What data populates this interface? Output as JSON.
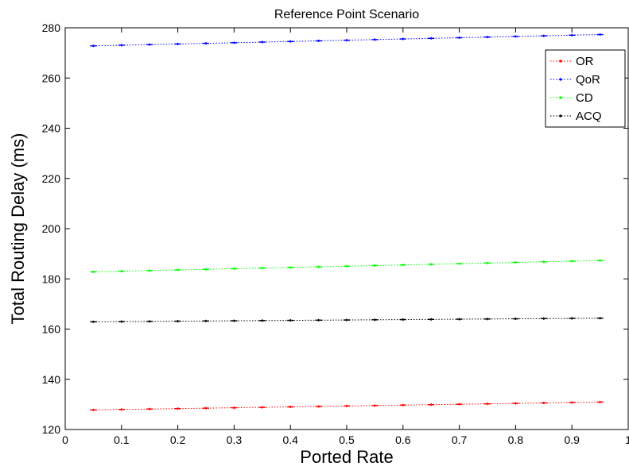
{
  "chart_data": {
    "type": "line",
    "title": "Reference Point Scenario",
    "xlabel": "Ported Rate",
    "ylabel": "Total Routing Delay (ms)",
    "xlim": [
      0,
      1
    ],
    "ylim": [
      120,
      280
    ],
    "xticks": [
      0,
      0.1,
      0.2,
      0.3,
      0.4,
      0.5,
      0.6,
      0.7,
      0.8,
      0.9,
      1
    ],
    "xtick_labels": [
      "0",
      "0.1",
      "0.2",
      "0.3",
      "0.4",
      "0.5",
      "0.6",
      "0.7",
      "0.8",
      "0.9",
      "1"
    ],
    "yticks": [
      120,
      140,
      160,
      180,
      200,
      220,
      240,
      260,
      280
    ],
    "ytick_labels": [
      "120",
      "140",
      "160",
      "180",
      "200",
      "220",
      "240",
      "260",
      "280"
    ],
    "grid": false,
    "legend_position": "top-right",
    "x": [
      0.05,
      0.1,
      0.15,
      0.2,
      0.25,
      0.3,
      0.35,
      0.4,
      0.45,
      0.5,
      0.55,
      0.6,
      0.65,
      0.7,
      0.75,
      0.8,
      0.85,
      0.9,
      0.95
    ],
    "series": [
      {
        "name": "OR",
        "color": "#ff0000",
        "values": [
          127.8,
          127.98,
          128.15,
          128.32,
          128.5,
          128.67,
          128.84,
          129.02,
          129.19,
          129.37,
          129.54,
          129.71,
          129.89,
          130.06,
          130.23,
          130.41,
          130.58,
          130.76,
          130.93
        ]
      },
      {
        "name": "QoR",
        "color": "#0000ff",
        "values": [
          272.8,
          273.05,
          273.3,
          273.55,
          273.8,
          274.05,
          274.3,
          274.55,
          274.8,
          275.05,
          275.3,
          275.55,
          275.8,
          276.05,
          276.3,
          276.55,
          276.8,
          277.05,
          277.3
        ]
      },
      {
        "name": "CD",
        "color": "#00ff00",
        "values": [
          182.8,
          183.05,
          183.3,
          183.55,
          183.8,
          184.05,
          184.3,
          184.55,
          184.8,
          185.05,
          185.3,
          185.55,
          185.8,
          186.05,
          186.3,
          186.55,
          186.8,
          187.05,
          187.3
        ]
      },
      {
        "name": "ACQ",
        "color": "#000000",
        "values": [
          162.9,
          162.98,
          163.06,
          163.14,
          163.22,
          163.3,
          163.38,
          163.46,
          163.54,
          163.62,
          163.7,
          163.78,
          163.86,
          163.94,
          164.02,
          164.1,
          164.18,
          164.26,
          164.34
        ]
      }
    ]
  }
}
